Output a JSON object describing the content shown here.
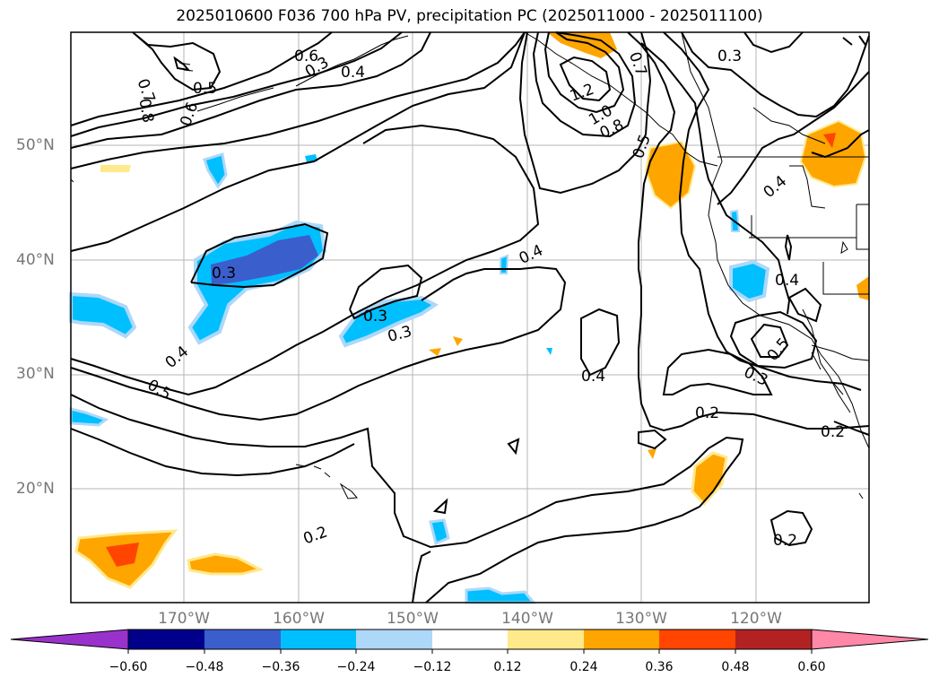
{
  "title": "2025010600 F036 700 hPa PV, precipitation PC (2025011000 - 2025011100)",
  "map": {
    "lat_labels": [
      "50°N",
      "40°N",
      "30°N",
      "20°N"
    ],
    "lon_labels": [
      "170°W",
      "160°W",
      "150°W",
      "140°W",
      "130°W",
      "120°W"
    ],
    "contour_labels": [
      "0.7",
      "0.8",
      "0.6",
      "0.5",
      "0.6",
      "0.4",
      "1.2",
      "1.0",
      "0.8",
      "0.7",
      "0.3",
      "0.5",
      "0.4",
      "0.4",
      "0.3",
      "0.3",
      "0.3",
      "0.4",
      "0.5",
      "0.4",
      "0.3",
      "0.2",
      "0.2",
      "0.2",
      "0.2",
      "0.4",
      "0.3",
      "0.5"
    ]
  },
  "colorbar": {
    "ticks": [
      "−0.60",
      "−0.48",
      "−0.36",
      "−0.24",
      "−0.12",
      "0.12",
      "0.24",
      "0.36",
      "0.48",
      "0.60"
    ],
    "colors": [
      "#9932cc",
      "#00008b",
      "#3a5fcd",
      "#00bfff",
      "#add8f8",
      "#ffffff",
      "#ffe98a",
      "#ffa500",
      "#ff4500",
      "#b22222",
      "#ff87a8"
    ]
  }
}
